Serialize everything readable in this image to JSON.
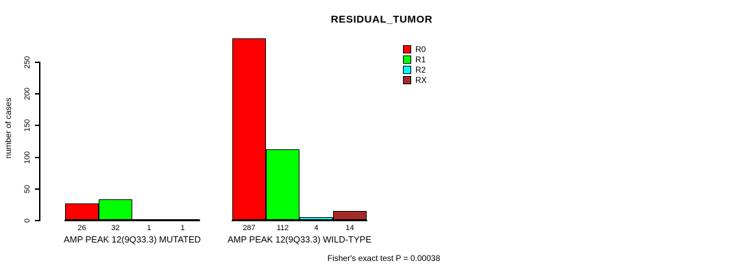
{
  "chart_data": {
    "type": "bar",
    "title": "RESIDUAL_TUMOR",
    "xlabel": "",
    "ylabel": "number of cases",
    "yticks": [
      0,
      50,
      100,
      150,
      200,
      250
    ],
    "ylim": [
      0,
      290
    ],
    "grid": false,
    "legend_position": "top-right",
    "categories": [
      "AMP PEAK 12(9Q33.3) MUTATED",
      "AMP PEAK 12(9Q33.3) WILD-TYPE"
    ],
    "series": [
      {
        "name": "R0",
        "color": "#ff0000",
        "values": [
          26,
          287
        ]
      },
      {
        "name": "R1",
        "color": "#00ff00",
        "values": [
          32,
          112
        ]
      },
      {
        "name": "R2",
        "color": "#00ffff",
        "values": [
          1,
          4
        ]
      },
      {
        "name": "RX",
        "color": "#a52a2a",
        "values": [
          1,
          14
        ]
      }
    ],
    "bar_value_labels": [
      [
        "26",
        "32",
        "1",
        "1"
      ],
      [
        "287",
        "112",
        "4",
        "14"
      ]
    ],
    "caption": "Fisher's exact test P = 0.00038"
  }
}
